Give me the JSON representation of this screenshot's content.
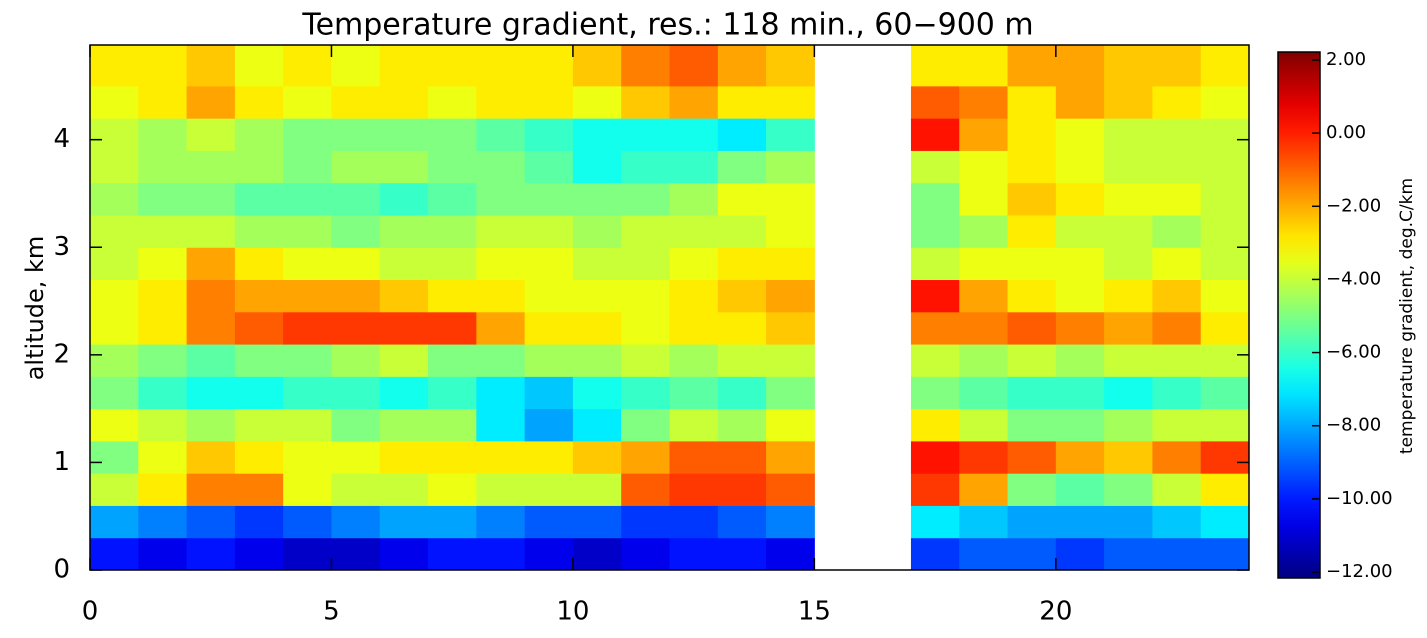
{
  "chart_data": {
    "type": "heatmap",
    "title": "Temperature gradient, res.: 118 min.,  60−900 m",
    "ylabel": "altitude, km",
    "colorbar_label": "temperature gradient, deg.C/km",
    "colormap": "jet",
    "xbins": [
      0,
      1,
      2,
      3,
      4,
      5,
      6,
      7,
      8,
      9,
      10,
      11,
      12,
      13,
      14,
      15,
      16,
      17,
      18,
      19,
      20,
      21,
      22,
      23,
      24
    ],
    "ybins": [
      0,
      0.3,
      0.6,
      0.9,
      1.2,
      1.5,
      1.8,
      2.1,
      2.4,
      2.7,
      3.0,
      3.3,
      3.6,
      3.9,
      4.2,
      4.5,
      4.88
    ],
    "xlim": [
      0,
      24
    ],
    "xticks": [
      0,
      5,
      10,
      15,
      20
    ],
    "ylim": [
      0,
      4.88
    ],
    "yticks": [
      0,
      1,
      2,
      3,
      4
    ],
    "clim": [
      -12,
      2
    ],
    "cticks": [
      {
        "value": 2,
        "label": "2.00"
      },
      {
        "value": 0,
        "label": "0.00"
      },
      {
        "value": -2,
        "label": "−2.00"
      },
      {
        "value": -4,
        "label": "−4.00"
      },
      {
        "value": -6,
        "label": "−6.00"
      },
      {
        "value": -8,
        "label": "−8.00"
      },
      {
        "value": -10,
        "label": "−10.00"
      },
      {
        "value": -12,
        "label": "−12.00"
      }
    ],
    "z": [
      [
        -10,
        -10.5,
        -10,
        -10.5,
        -11,
        -11,
        -10.5,
        -10,
        -10,
        -10.5,
        -11,
        -10.5,
        -10,
        -10,
        -10.5,
        null,
        null,
        -9.5,
        -9,
        -9,
        -9.5,
        -9,
        -9,
        -9
      ],
      [
        -8,
        -8.5,
        -9,
        -9.5,
        -9,
        -8.5,
        -8,
        -8,
        -8.5,
        -9,
        -9,
        -9.5,
        -9.5,
        -9,
        -8.5,
        null,
        null,
        -7,
        -7.5,
        -8,
        -8,
        -8,
        -7.5,
        -7
      ],
      [
        -4,
        -3,
        -1.5,
        -1.5,
        -3.5,
        -4,
        -4,
        -3.5,
        -4,
        -4,
        -4,
        -1,
        -0.5,
        -0.5,
        -1,
        null,
        null,
        -0.5,
        -2,
        -5,
        -5.5,
        -5,
        -4,
        -3
      ],
      [
        -5,
        -3.5,
        -2.5,
        -3,
        -3.5,
        -3.5,
        -3,
        -3,
        -3,
        -3,
        -2.5,
        -2,
        -1,
        -1,
        -2,
        null,
        null,
        0,
        -0.5,
        -1,
        -2,
        -2.5,
        -1.5,
        -0.5
      ],
      [
        -3.5,
        -4,
        -4.5,
        -4,
        -4,
        -5,
        -4.5,
        -4.5,
        -7,
        -8,
        -7,
        -5,
        -4,
        -4.5,
        -3.5,
        null,
        null,
        -3,
        -4,
        -5,
        -5,
        -4.5,
        -4,
        -4
      ],
      [
        -5,
        -6,
        -6.5,
        -6.5,
        -6,
        -6,
        -6.5,
        -6,
        -7,
        -7.5,
        -6.5,
        -6,
        -5.5,
        -6,
        -5,
        null,
        null,
        -5,
        -5.5,
        -6,
        -6,
        -6.5,
        -6,
        -5.5
      ],
      [
        -4.5,
        -5,
        -5.5,
        -5,
        -5,
        -4.5,
        -4,
        -5,
        -5,
        -4.5,
        -4.5,
        -4,
        -4.5,
        -4,
        -4,
        null,
        null,
        -4,
        -4.5,
        -4,
        -4.5,
        -4,
        -4,
        -4
      ],
      [
        -3.5,
        -3,
        -1.5,
        -1,
        -0.5,
        -0.5,
        -0.5,
        -0.5,
        -2,
        -3,
        -3,
        -3.5,
        -3,
        -3,
        -2.5,
        null,
        null,
        -1.5,
        -1.5,
        -1,
        -1.5,
        -2,
        -1.5,
        -3
      ],
      [
        -3.5,
        -3,
        -1.5,
        -2,
        -2,
        -2,
        -2.5,
        -3,
        -3,
        -3.5,
        -3.5,
        -3.5,
        -3,
        -2.5,
        -2,
        null,
        null,
        0,
        -2,
        -3,
        -3.5,
        -3,
        -2.5,
        -3.5
      ],
      [
        -4,
        -3.5,
        -2,
        -3,
        -3.5,
        -3.5,
        -4,
        -4,
        -3.5,
        -3.5,
        -4,
        -4,
        -3.5,
        -3,
        -3,
        null,
        null,
        -4,
        -3.5,
        -3.5,
        -3.5,
        -4,
        -3.5,
        -4
      ],
      [
        -4,
        -4,
        -4,
        -4.5,
        -4.5,
        -5,
        -4.5,
        -4.5,
        -4,
        -4,
        -4.5,
        -4,
        -4,
        -4,
        -3.5,
        null,
        null,
        -5,
        -4.5,
        -3,
        -4,
        -4,
        -4.5,
        -4
      ],
      [
        -4.5,
        -5,
        -5,
        -5.5,
        -5.5,
        -5.5,
        -6,
        -5.5,
        -5,
        -5,
        -5,
        -5,
        -4.5,
        -3.5,
        -3.5,
        null,
        null,
        -5,
        -3.5,
        -2.5,
        -3,
        -3.5,
        -3.5,
        -4
      ],
      [
        -4,
        -4.5,
        -4.5,
        -4.5,
        -5,
        -4.5,
        -4.5,
        -5,
        -5,
        -5.5,
        -6.5,
        -6,
        -6,
        -5,
        -4.5,
        null,
        null,
        -4,
        -3.5,
        -3,
        -3.5,
        -4,
        -4,
        -4
      ],
      [
        -4,
        -4.5,
        -4,
        -4.5,
        -5,
        -5,
        -5,
        -5,
        -5.5,
        -6,
        -6.5,
        -6.5,
        -6.5,
        -7,
        -6,
        null,
        null,
        0,
        -2,
        -3,
        -3.5,
        -4,
        -4,
        -4
      ],
      [
        -3.5,
        -3,
        -2,
        -3,
        -3.5,
        -3,
        -3,
        -3.5,
        -3,
        -3,
        -3.5,
        -2.5,
        -2,
        -3,
        -3,
        null,
        null,
        -1,
        -1.5,
        -3,
        -2,
        -2.5,
        -3,
        -3.5
      ],
      [
        -3,
        -3,
        -2.5,
        -3.5,
        -3,
        -3.5,
        -3,
        -3,
        -3,
        -3,
        -2.5,
        -1.5,
        -1,
        -2,
        -2.5,
        null,
        null,
        -3,
        -3,
        -2,
        -2,
        -2.5,
        -2.5,
        -3
      ]
    ]
  }
}
